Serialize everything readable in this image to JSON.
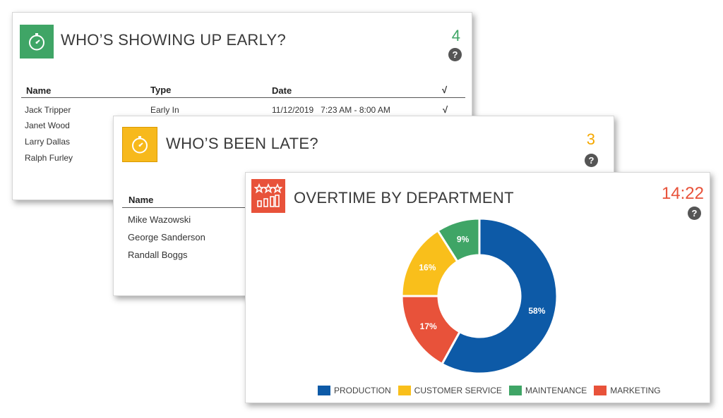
{
  "early": {
    "title": "WHO’S SHOWING UP EARLY?",
    "count": "4",
    "help": "?",
    "columns": {
      "name": "Name",
      "type": "Type",
      "date": "Date",
      "check": "√"
    },
    "rows": [
      {
        "name": "Jack Tripper",
        "type": "Early In",
        "date": "11/12/2019   7:23 AM - 8:00 AM",
        "check": "√"
      },
      {
        "name": "Janet Wood"
      },
      {
        "name": "Larry Dallas"
      },
      {
        "name": "Ralph Furley"
      }
    ]
  },
  "late": {
    "title": "WHO’S BEEN LATE?",
    "count": "3",
    "help": "?",
    "columns": {
      "name": "Name"
    },
    "rows": [
      {
        "name": "Mike Wazowski"
      },
      {
        "name": "George Sanderson"
      },
      {
        "name": "Randall Boggs"
      }
    ]
  },
  "overtime": {
    "title": "OVERTIME BY DEPARTMENT",
    "count": "14:22",
    "help": "?"
  },
  "chart_data": {
    "type": "pie",
    "donut": true,
    "categories": [
      "PRODUCTION",
      "MARKETING",
      "CUSTOMER SERVICE",
      "MAINTENANCE"
    ],
    "values": [
      58,
      17,
      16,
      9
    ],
    "labels": [
      "58%",
      "17%",
      "16%",
      "9%"
    ],
    "colors": [
      "#0d5aa7",
      "#e8523a",
      "#f9bf1b",
      "#3fa566"
    ],
    "legend": [
      {
        "label": "PRODUCTION",
        "color": "#0d5aa7"
      },
      {
        "label": "CUSTOMER SERVICE",
        "color": "#f9bf1b"
      },
      {
        "label": "MAINTENANCE",
        "color": "#3fa566"
      },
      {
        "label": "MARKETING",
        "color": "#e8523a"
      }
    ],
    "legend_position": "bottom"
  },
  "icons": {
    "early": "stopwatch-icon",
    "late": "stopwatch-icon",
    "overtime": "stars-bars-icon"
  },
  "colors": {
    "early_accent": "#3fa566",
    "late_accent": "#f5a800",
    "overtime_accent": "#e8523a"
  }
}
